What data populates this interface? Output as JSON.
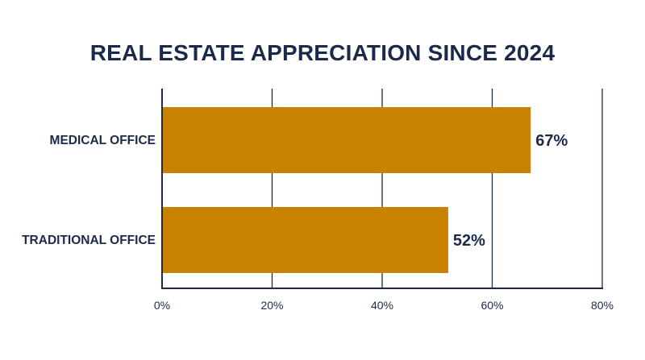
{
  "chart_data": {
    "type": "bar",
    "orientation": "horizontal",
    "title": "REAL ESTATE APPRECIATION SINCE 2024",
    "categories": [
      "MEDICAL OFFICE",
      "TRADITIONAL OFFICE"
    ],
    "values": [
      67,
      52
    ],
    "value_labels": [
      "67%",
      "52%"
    ],
    "xlim": [
      0,
      80
    ],
    "x_ticks": [
      0,
      20,
      40,
      60,
      80
    ],
    "x_tick_labels": [
      "0%",
      "20%",
      "40%",
      "60%",
      "80%"
    ],
    "grid": true,
    "legend": "none",
    "colors": {
      "bar": "#c98200",
      "text": "#1b2a4a",
      "grid": "#1b2a4a"
    }
  }
}
